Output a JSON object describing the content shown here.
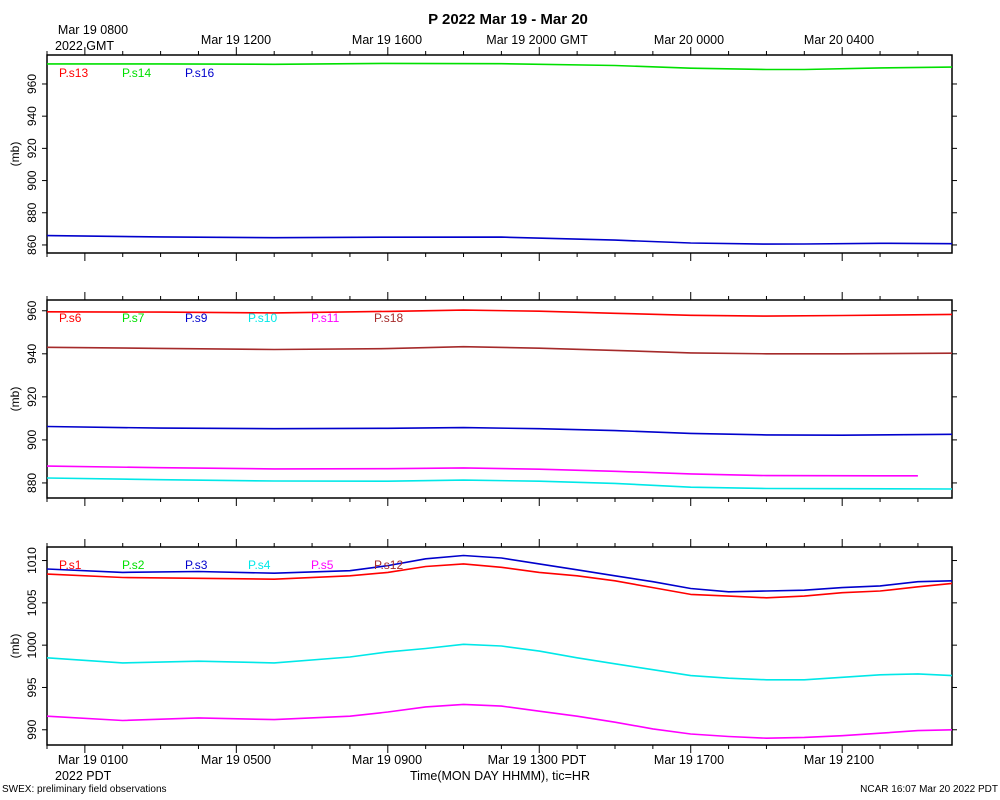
{
  "title": "P 2022 Mar 19 - Mar 20",
  "top_axis": {
    "labels": [
      "Mar 19 0800",
      "Mar 19 1200",
      "Mar 19 1600",
      "Mar 19 2000 GMT",
      "Mar 20 0000",
      "Mar 20 0400"
    ],
    "sublabel": "2022 GMT"
  },
  "bottom_axis": {
    "labels": [
      "Mar 19 0100",
      "Mar 19 0500",
      "Mar 19 0900",
      "Mar 19 1300 PDT",
      "Mar 19 1700",
      "Mar 19 2100"
    ],
    "sublabel": "2022 PDT",
    "title": "Time(MON DAY HHMM), tic=HR"
  },
  "footer": {
    "left": "SWEX: preliminary field observations",
    "right": "NCAR 16:07 Mar 20 2022 PDT"
  },
  "chart_data": [
    {
      "type": "line",
      "ylabel": "(mb)",
      "ylim": [
        855,
        978
      ],
      "yticks": [
        860,
        880,
        900,
        920,
        940,
        960
      ],
      "x_unit": "hours since Mar 19 0100 PDT",
      "xlim": [
        -1.0,
        22.9
      ],
      "series": [
        {
          "name": "P.s13",
          "color": "#ff0000",
          "points": []
        },
        {
          "name": "P.s14",
          "color": "#00e000",
          "points": [
            [
              -1,
              972.5
            ],
            [
              2,
              972.5
            ],
            [
              5,
              972.2
            ],
            [
              8,
              972.8
            ],
            [
              11,
              972.6
            ],
            [
              14,
              971.5
            ],
            [
              16,
              969.8
            ],
            [
              18,
              969.0
            ],
            [
              19,
              969.0
            ],
            [
              21,
              970.0
            ],
            [
              22.9,
              970.5
            ]
          ]
        },
        {
          "name": "P.s16",
          "color": "#0000cc",
          "points": [
            [
              -1,
              865.8
            ],
            [
              2,
              865.0
            ],
            [
              5,
              864.5
            ],
            [
              8,
              864.8
            ],
            [
              11,
              864.9
            ],
            [
              14,
              863.0
            ],
            [
              16,
              861.2
            ],
            [
              18,
              860.5
            ],
            [
              19,
              860.6
            ],
            [
              21,
              861.0
            ],
            [
              22.9,
              860.8
            ]
          ]
        }
      ]
    },
    {
      "type": "line",
      "ylabel": "(mb)",
      "ylim": [
        873,
        965
      ],
      "yticks": [
        880,
        900,
        920,
        940,
        960
      ],
      "x_unit": "hours since Mar 19 0100 PDT",
      "xlim": [
        -1.0,
        22.9
      ],
      "series": [
        {
          "name": "P.s6",
          "color": "#ff0000",
          "points": [
            [
              -1,
              959.5
            ],
            [
              2,
              959.4
            ],
            [
              5,
              959.0
            ],
            [
              8,
              959.7
            ],
            [
              10,
              960.3
            ],
            [
              12,
              959.8
            ],
            [
              14,
              958.8
            ],
            [
              16,
              957.9
            ],
            [
              18,
              957.5
            ],
            [
              20,
              957.8
            ],
            [
              22.9,
              958.3
            ]
          ]
        },
        {
          "name": "P.s7",
          "color": "#00e000",
          "points": []
        },
        {
          "name": "P.s9",
          "color": "#0000cc",
          "points": [
            [
              -1,
              906.2
            ],
            [
              2,
              905.5
            ],
            [
              5,
              905.2
            ],
            [
              8,
              905.4
            ],
            [
              10,
              905.7
            ],
            [
              12,
              905.2
            ],
            [
              14,
              904.3
            ],
            [
              16,
              903.0
            ],
            [
              18,
              902.3
            ],
            [
              20,
              902.2
            ],
            [
              22.9,
              902.6
            ]
          ]
        },
        {
          "name": "P.s10",
          "color": "#00e8e8",
          "points": [
            [
              -1,
              882.3
            ],
            [
              2,
              881.5
            ],
            [
              5,
              880.9
            ],
            [
              8,
              880.8
            ],
            [
              10,
              881.3
            ],
            [
              12,
              880.8
            ],
            [
              14,
              879.8
            ],
            [
              16,
              878.0
            ],
            [
              18,
              877.4
            ],
            [
              20,
              877.3
            ],
            [
              22.9,
              877.2
            ]
          ]
        },
        {
          "name": "P.s11",
          "color": "#ff00ff",
          "points": [
            [
              -1,
              887.8
            ],
            [
              2,
              887.1
            ],
            [
              5,
              886.5
            ],
            [
              8,
              886.6
            ],
            [
              10,
              887.0
            ],
            [
              12,
              886.4
            ],
            [
              14,
              885.4
            ],
            [
              16,
              884.2
            ],
            [
              18,
              883.4
            ],
            [
              21,
              883.3
            ],
            [
              22.0,
              883.3
            ]
          ]
        },
        {
          "name": "P.s18",
          "color": "#a52a2a",
          "points": [
            [
              -1,
              943.0
            ],
            [
              2,
              942.5
            ],
            [
              5,
              942.0
            ],
            [
              8,
              942.4
            ],
            [
              10,
              943.3
            ],
            [
              12,
              942.6
            ],
            [
              14,
              941.6
            ],
            [
              16,
              940.4
            ],
            [
              18,
              940.0
            ],
            [
              20,
              940.0
            ],
            [
              22.9,
              940.3
            ]
          ]
        }
      ]
    },
    {
      "type": "line",
      "ylabel": "(mb)",
      "ylim": [
        988.2,
        1011.6
      ],
      "yticks": [
        990,
        995,
        1000,
        1005,
        1010
      ],
      "x_unit": "hours since Mar 19 0100 PDT",
      "xlim": [
        -1.0,
        22.9
      ],
      "series": [
        {
          "name": "P.s1",
          "color": "#ff0000",
          "points": [
            [
              -1,
              1008.4
            ],
            [
              1,
              1008.0
            ],
            [
              3,
              1007.9
            ],
            [
              5,
              1007.8
            ],
            [
              7,
              1008.2
            ],
            [
              8,
              1008.6
            ],
            [
              9,
              1009.3
            ],
            [
              10,
              1009.6
            ],
            [
              11,
              1009.2
            ],
            [
              12,
              1008.6
            ],
            [
              13,
              1008.2
            ],
            [
              14,
              1007.6
            ],
            [
              15,
              1006.8
            ],
            [
              16,
              1006.0
            ],
            [
              17,
              1005.8
            ],
            [
              18,
              1005.6
            ],
            [
              19,
              1005.8
            ],
            [
              20,
              1006.2
            ],
            [
              21,
              1006.4
            ],
            [
              22,
              1006.9
            ],
            [
              22.9,
              1007.3
            ]
          ]
        },
        {
          "name": "P.s2",
          "color": "#00e000",
          "points": []
        },
        {
          "name": "P.s3",
          "color": "#0000cc",
          "points": [
            [
              -1,
              1009.0
            ],
            [
              1,
              1008.6
            ],
            [
              3,
              1008.7
            ],
            [
              5,
              1008.5
            ],
            [
              7,
              1008.8
            ],
            [
              8,
              1009.4
            ],
            [
              9,
              1010.2
            ],
            [
              10,
              1010.6
            ],
            [
              11,
              1010.3
            ],
            [
              12,
              1009.6
            ],
            [
              13,
              1008.9
            ],
            [
              14,
              1008.2
            ],
            [
              15,
              1007.5
            ],
            [
              16,
              1006.7
            ],
            [
              17,
              1006.3
            ],
            [
              18,
              1006.4
            ],
            [
              19,
              1006.5
            ],
            [
              20,
              1006.8
            ],
            [
              21,
              1007.0
            ],
            [
              22,
              1007.5
            ],
            [
              22.9,
              1007.6
            ]
          ]
        },
        {
          "name": "P.s4",
          "color": "#00e8e8",
          "points": [
            [
              -1,
              998.5
            ],
            [
              1,
              997.9
            ],
            [
              3,
              998.1
            ],
            [
              5,
              997.9
            ],
            [
              7,
              998.6
            ],
            [
              8,
              999.2
            ],
            [
              9,
              999.6
            ],
            [
              10,
              1000.1
            ],
            [
              11,
              999.9
            ],
            [
              12,
              999.3
            ],
            [
              13,
              998.5
            ],
            [
              14,
              997.8
            ],
            [
              15,
              997.1
            ],
            [
              16,
              996.4
            ],
            [
              17,
              996.1
            ],
            [
              18,
              995.9
            ],
            [
              19,
              995.9
            ],
            [
              20,
              996.2
            ],
            [
              21,
              996.5
            ],
            [
              22,
              996.6
            ],
            [
              22.9,
              996.4
            ]
          ]
        },
        {
          "name": "P.s5",
          "color": "#ff00ff",
          "points": [
            [
              -1,
              991.6
            ],
            [
              1,
              991.1
            ],
            [
              3,
              991.4
            ],
            [
              5,
              991.2
            ],
            [
              7,
              991.6
            ],
            [
              8,
              992.1
            ],
            [
              9,
              992.7
            ],
            [
              10,
              993.0
            ],
            [
              11,
              992.8
            ],
            [
              12,
              992.2
            ],
            [
              13,
              991.6
            ],
            [
              14,
              990.9
            ],
            [
              15,
              990.1
            ],
            [
              16,
              989.5
            ],
            [
              17,
              989.2
            ],
            [
              18,
              989.0
            ],
            [
              19,
              989.1
            ],
            [
              20,
              989.3
            ],
            [
              21,
              989.6
            ],
            [
              22,
              989.9
            ],
            [
              22.9,
              990.0
            ]
          ]
        },
        {
          "name": "P.s12",
          "color": "#a52a2a",
          "points": []
        }
      ]
    }
  ]
}
